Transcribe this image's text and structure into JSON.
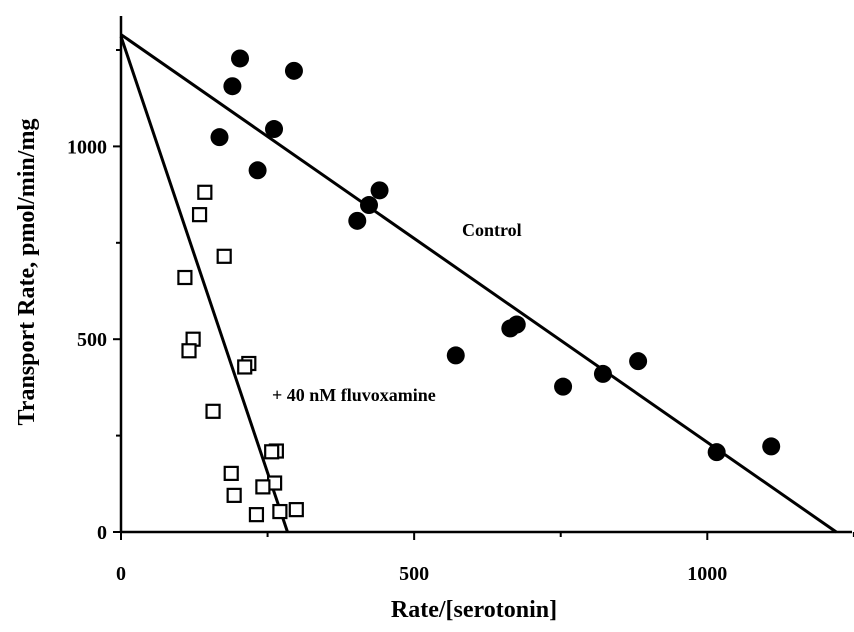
{
  "chart_data": {
    "type": "scatter",
    "xlabel": "Rate/[serotonin]",
    "ylabel": "Transport Rate, pmol/min/mg",
    "xlim": [
      0,
      1250
    ],
    "ylim": [
      0,
      1310
    ],
    "x_ticks": [
      {
        "value": 0,
        "label": "0"
      },
      {
        "value": 500,
        "label": "500"
      },
      {
        "value": 1000,
        "label": "1000"
      }
    ],
    "y_ticks": [
      {
        "value": 0,
        "label": "0"
      },
      {
        "value": 500,
        "label": "500"
      },
      {
        "value": 1000,
        "label": "1000"
      }
    ],
    "series": [
      {
        "name": "Control",
        "marker": "filled-circle",
        "points": [
          [
            203,
            1228
          ],
          [
            295,
            1196
          ],
          [
            190,
            1156
          ],
          [
            261,
            1045
          ],
          [
            168,
            1024
          ],
          [
            233,
            938
          ],
          [
            441,
            886
          ],
          [
            423,
            848
          ],
          [
            403,
            807
          ],
          [
            675,
            538
          ],
          [
            664,
            528
          ],
          [
            571,
            458
          ],
          [
            882,
            443
          ],
          [
            822,
            410
          ],
          [
            754,
            377
          ],
          [
            1109,
            222
          ],
          [
            1016,
            207
          ]
        ],
        "fit_line": [
          [
            0,
            1290
          ],
          [
            1220,
            0
          ]
        ]
      },
      {
        "name": "+ 40 nM fluvoxamine",
        "marker": "open-square",
        "points": [
          [
            143,
            881
          ],
          [
            134,
            823
          ],
          [
            176,
            715
          ],
          [
            109,
            660
          ],
          [
            123,
            500
          ],
          [
            116,
            470
          ],
          [
            218,
            437
          ],
          [
            211,
            428
          ],
          [
            157,
            313
          ],
          [
            265,
            210
          ],
          [
            257,
            208
          ],
          [
            188,
            152
          ],
          [
            262,
            127
          ],
          [
            242,
            117
          ],
          [
            193,
            95
          ],
          [
            299,
            58
          ],
          [
            271,
            53
          ],
          [
            231,
            45
          ]
        ],
        "fit_line": [
          [
            0,
            1285
          ],
          [
            284,
            0
          ]
        ]
      }
    ],
    "annotations": [
      {
        "text": "Control"
      },
      {
        "text": "+ 40 nM fluvoxamine"
      }
    ],
    "grid": false,
    "legend": "none"
  }
}
